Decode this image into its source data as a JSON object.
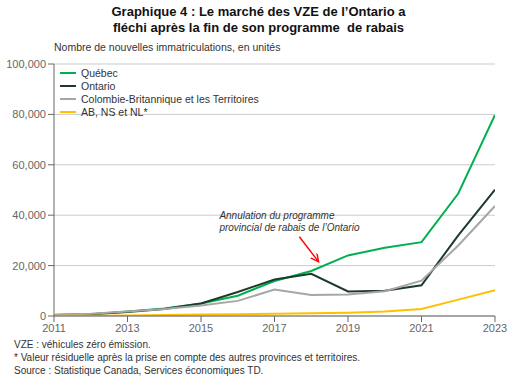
{
  "chart_data": {
    "type": "line",
    "title": "Graphique 4 : Le marché des VZE de l’Ontario a\nfléchi après la fin de son programme  de rabais",
    "subtitle": "Nombre de nouvelles immatriculations, en unités",
    "footnotes": [
      "VZE : véhicules zéro émission.",
      "* Valeur résiduelle après la prise en compte des autres provinces et territoires.",
      "Source : Statistique Canada, Services économiques TD."
    ],
    "x": [
      2011,
      2012,
      2013,
      2014,
      2015,
      2016,
      2017,
      2018,
      2019,
      2020,
      2021,
      2022,
      2023
    ],
    "series": [
      {
        "name": "Québec",
        "color": "#00B050",
        "values": [
          354,
          712,
          1772,
          3016,
          5003,
          8048,
          13905,
          17843,
          24032,
          27104,
          29302,
          48611,
          79797
        ]
      },
      {
        "name": "Ontario",
        "color": "#1F3A2A",
        "values": [
          386,
          742,
          1567,
          2750,
          5000,
          9536,
          14501,
          16758,
          9762,
          10046,
          12210,
          32000,
          50132
        ]
      },
      {
        "name": "Colombie-Britannique et les Territoires",
        "color": "#A6A6A6",
        "values": [
          469,
          900,
          1800,
          2800,
          4200,
          6000,
          10500,
          8318,
          8500,
          9800,
          14000,
          28000,
          43638
        ]
      },
      {
        "name": "AB, NS et NL*",
        "color": "#FFC000",
        "values": [
          50,
          100,
          200,
          350,
          550,
          700,
          900,
          1046,
          1300,
          1800,
          2800,
          6500,
          10262
        ]
      }
    ],
    "xlim": [
      2011,
      2023
    ],
    "xticks": [
      2011,
      2013,
      2015,
      2017,
      2019,
      2021,
      2023
    ],
    "ylim": [
      0,
      100000
    ],
    "yticks": [
      0,
      {
        "value": 20000,
        "label": "20,000"
      },
      {
        "value": 40000,
        "label": "40,000"
      },
      {
        "value": 60000,
        "label": "60,000"
      },
      {
        "value": 80000,
        "label": "80,000"
      },
      {
        "value": 100000,
        "label": "100,000"
      }
    ],
    "grid": true,
    "legend": "upper left",
    "annotations": [
      {
        "text": "Annulation du programme\nprovincial de rabais de l’Ontario",
        "x": 2018.2,
        "y": 21500,
        "text_x": 2015.5,
        "text_y": 37000,
        "color": "red"
      }
    ]
  }
}
